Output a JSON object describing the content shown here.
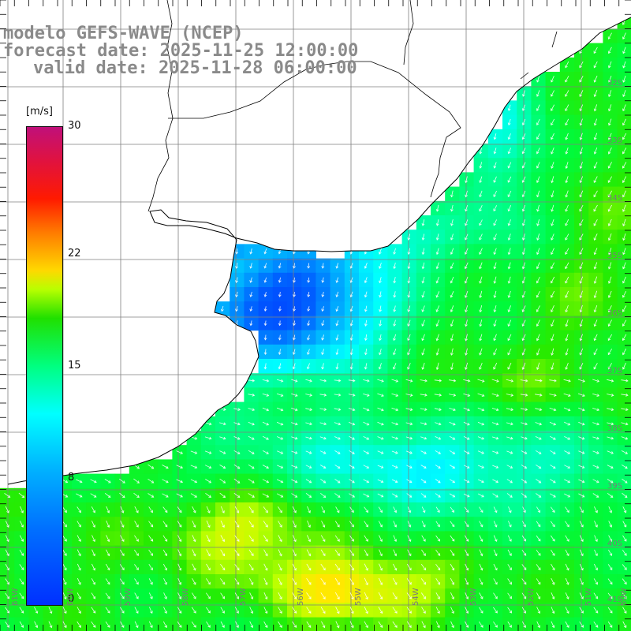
{
  "title": {
    "line1": "modelo GEFS-WAVE (NCEP)",
    "line2": "forecast date: 2025-11-25 12:00:00",
    "line3": "valid date: 2025-11-28 06:00:00"
  },
  "colorbar": {
    "unit": "[m/s]",
    "ticks": [
      {
        "value": 30,
        "label": "30"
      },
      {
        "value": 22,
        "label": "22"
      },
      {
        "value": 15,
        "label": "15"
      },
      {
        "value": 8,
        "label": "8"
      },
      {
        "value": 0,
        "label": "0"
      }
    ],
    "range": [
      0,
      30
    ]
  },
  "axes": {
    "lat_labels": [
      "32S",
      "33S",
      "34S",
      "35S",
      "36S",
      "37S",
      "38S",
      "39S",
      "40S",
      "41S"
    ],
    "lon_labels": [
      "61W",
      "60W",
      "59W",
      "58W",
      "57W",
      "56W",
      "55W",
      "54W",
      "53W",
      "52W",
      "51W",
      "50W"
    ]
  },
  "colors": {
    "land": "#ffffff",
    "coast": "#000000",
    "grid": "#7f7f7f",
    "arrows": "#ffffff",
    "title": "#8a8a8a"
  },
  "chart_data": {
    "type": "heatmap",
    "variable": "wind speed",
    "unit": "m/s",
    "region": "Rio de la Plata / southern Brazil coast",
    "lat_range": [
      -41.5,
      -31
    ],
    "lon_range": [
      -61.5,
      -50
    ]
  }
}
